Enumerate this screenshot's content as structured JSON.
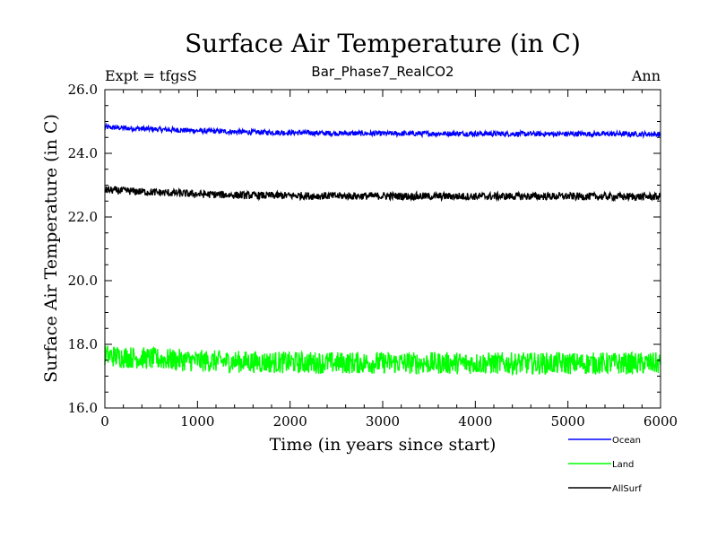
{
  "chart_data": {
    "type": "line",
    "title": "Surface Air Temperature (in C)",
    "subtitle": "Bar_Phase7_RealCO2",
    "left_label": "Expt = tfgsS",
    "right_label": "Ann",
    "xlabel": "Time (in years since start)",
    "ylabel": "Surface Air Temperature (in C)",
    "xlim": [
      0,
      6000
    ],
    "ylim": [
      16.0,
      26.0
    ],
    "x_ticks": [
      0,
      1000,
      2000,
      3000,
      4000,
      5000,
      6000
    ],
    "x_tick_labels": [
      "0",
      "1000",
      "2000",
      "3000",
      "4000",
      "5000",
      "6000"
    ],
    "y_ticks": [
      16.0,
      18.0,
      20.0,
      22.0,
      24.0,
      26.0
    ],
    "y_tick_labels": [
      "16.0",
      "18.0",
      "20.0",
      "22.0",
      "24.0",
      "26.0"
    ],
    "x": [
      0,
      500,
      1000,
      1500,
      2000,
      2500,
      3000,
      3500,
      4000,
      4500,
      5000,
      5500,
      6000
    ],
    "series": [
      {
        "name": "Ocean",
        "color": "#0000ff",
        "noise": 0.08,
        "values": [
          24.82,
          24.76,
          24.71,
          24.67,
          24.65,
          24.63,
          24.62,
          24.62,
          24.62,
          24.61,
          24.61,
          24.61,
          24.6
        ]
      },
      {
        "name": "Land",
        "color": "#00ff00",
        "noise": 0.35,
        "values": [
          17.65,
          17.55,
          17.48,
          17.45,
          17.43,
          17.42,
          17.42,
          17.41,
          17.41,
          17.4,
          17.4,
          17.4,
          17.4
        ]
      },
      {
        "name": "AllSurf",
        "color": "#000000",
        "noise": 0.12,
        "values": [
          22.85,
          22.78,
          22.72,
          22.68,
          22.67,
          22.66,
          22.66,
          22.65,
          22.65,
          22.65,
          22.65,
          22.64,
          22.64
        ]
      }
    ],
    "legend_position": "bottom-right",
    "grid": false
  }
}
